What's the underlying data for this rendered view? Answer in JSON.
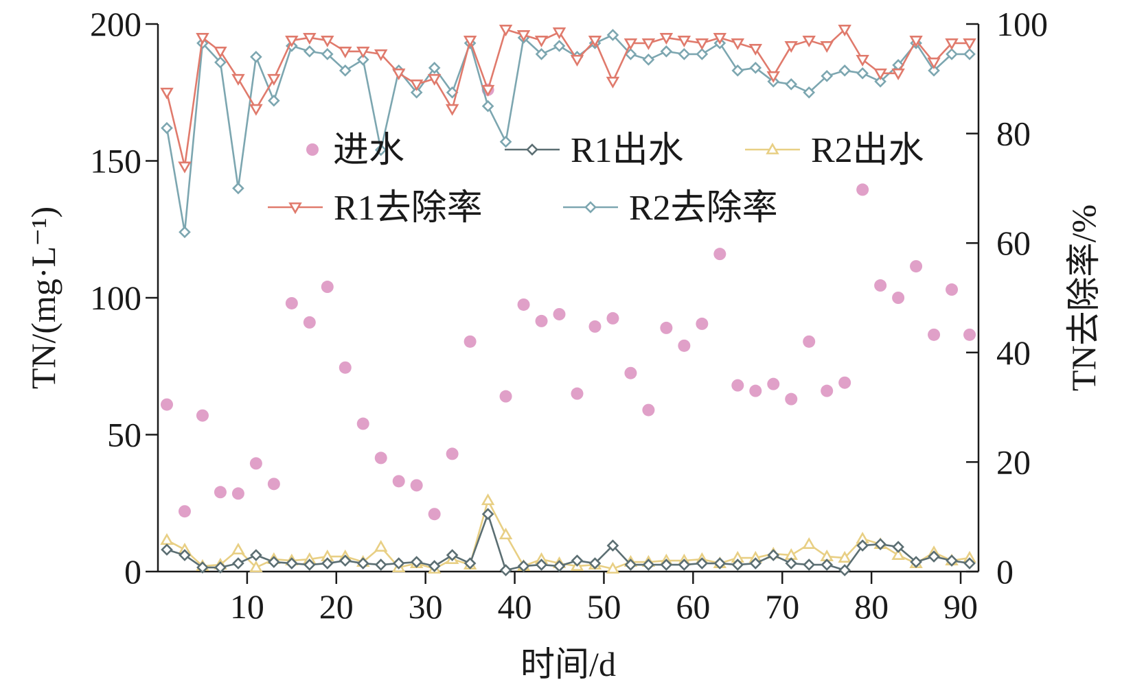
{
  "chart_data": {
    "type": "line",
    "title": "",
    "xlabel": "时间/d",
    "ylabel_left": "TN/(mg·L⁻¹)",
    "ylabel_right": "TN去除率/%",
    "xlim": [
      0,
      92
    ],
    "ylim_left": [
      0,
      200
    ],
    "ylim_right": [
      0,
      100
    ],
    "x_ticks": [
      10,
      20,
      30,
      40,
      50,
      60,
      70,
      80,
      90
    ],
    "y_left_ticks": [
      0,
      50,
      100,
      150,
      200
    ],
    "y_right_ticks": [
      0,
      20,
      40,
      60,
      80,
      100
    ],
    "grid": false,
    "legend_position": "upper-center",
    "x": [
      1,
      3,
      5,
      7,
      9,
      11,
      13,
      15,
      17,
      19,
      21,
      23,
      25,
      27,
      29,
      31,
      33,
      35,
      37,
      39,
      41,
      43,
      45,
      47,
      49,
      51,
      53,
      55,
      57,
      59,
      61,
      63,
      65,
      67,
      69,
      71,
      73,
      75,
      77,
      79,
      81,
      83,
      85,
      87,
      89,
      91
    ],
    "series": [
      {
        "name": "进水",
        "axis": "left",
        "style": "scatter",
        "marker": "circle",
        "color": "#e0a0c8",
        "values": [
          61,
          22,
          57,
          29,
          28.5,
          39.5,
          32,
          98,
          91,
          104,
          74.5,
          54,
          41.5,
          33,
          31.5,
          21,
          43,
          84,
          176,
          64,
          97.5,
          91.5,
          94,
          65,
          89.5,
          92.5,
          72.5,
          59,
          89,
          82.5,
          90.5,
          116,
          68,
          66,
          68.5,
          63,
          84,
          66,
          69,
          139.5,
          104.5,
          100,
          111.5,
          86.5,
          103,
          86.5
        ]
      },
      {
        "name": "R1出水",
        "axis": "left",
        "style": "line",
        "marker": "diamond",
        "color": "#5b6e72",
        "values": [
          8,
          6,
          1.5,
          1.5,
          3,
          6,
          3.5,
          3,
          2.5,
          3,
          4,
          3,
          2.5,
          3,
          3.5,
          2,
          6,
          3,
          21,
          0.5,
          2,
          2.5,
          2,
          4,
          3,
          9.5,
          2.5,
          2.5,
          2.5,
          2.5,
          3,
          3,
          2.5,
          3,
          6,
          3,
          2.5,
          2.5,
          0.5,
          9.5,
          10,
          9,
          3.5,
          5.5,
          4,
          3
        ]
      },
      {
        "name": "R2出水",
        "axis": "left",
        "style": "line",
        "marker": "triangle-up",
        "color": "#e8cf84",
        "values": [
          11.5,
          8,
          2,
          2.5,
          8,
          1.5,
          4.5,
          4,
          4.5,
          5.5,
          5.5,
          3.5,
          9,
          1.5,
          3,
          1,
          4.5,
          2.5,
          26,
          13.5,
          2,
          4.5,
          3,
          2,
          2.5,
          1,
          3.5,
          3.5,
          4,
          4,
          4.5,
          3,
          5,
          5,
          6.5,
          6,
          10,
          5.5,
          5,
          12,
          10,
          6,
          3,
          7,
          4,
          5
        ]
      },
      {
        "name": "R1去除率",
        "axis": "right",
        "style": "line",
        "marker": "triangle-down",
        "color": "#e07a6c",
        "values": [
          87.5,
          74,
          97.5,
          95,
          90,
          84.5,
          90,
          97,
          97.5,
          97,
          95,
          95,
          94.5,
          91,
          89,
          90,
          84.5,
          97,
          88,
          99,
          98,
          97,
          98.5,
          93.5,
          97,
          89.5,
          96.5,
          96.5,
          97.5,
          97,
          96.5,
          97.5,
          96.5,
          95.5,
          90.5,
          96,
          97,
          96,
          99,
          93.5,
          91,
          91,
          97,
          93,
          96.5,
          96.5
        ]
      },
      {
        "name": "R2去除率",
        "axis": "right",
        "style": "line",
        "marker": "diamond",
        "color": "#7ca6b0",
        "values": [
          81,
          62,
          96.5,
          93,
          70,
          94,
          86,
          96,
          95,
          94.5,
          91.5,
          93.5,
          77,
          91.5,
          87.5,
          92,
          87.5,
          96.5,
          85,
          78.5,
          97.5,
          94.5,
          96,
          94,
          96.5,
          98,
          94.5,
          93.5,
          95,
          94.5,
          94.5,
          96.5,
          91.5,
          92,
          89.5,
          89,
          87.5,
          90.5,
          91.5,
          91,
          89.5,
          92.5,
          96.5,
          91.5,
          94.5,
          94.5
        ]
      }
    ]
  }
}
